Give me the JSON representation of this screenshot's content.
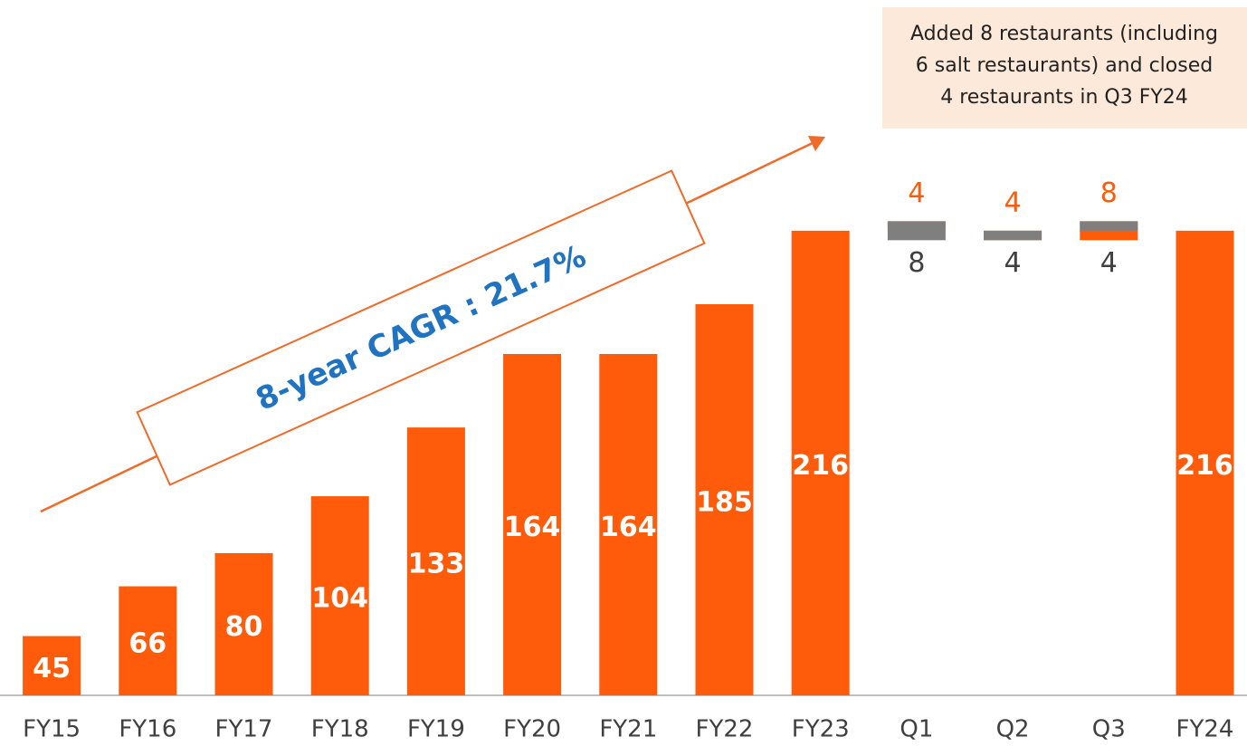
{
  "chart_data": {
    "type": "waterfall",
    "categories": [
      "FY15",
      "FY16",
      "FY17",
      "FY18",
      "FY19",
      "FY20",
      "FY21",
      "FY22",
      "FY23",
      "Q1",
      "Q2",
      "Q3",
      "FY24"
    ],
    "series": [
      {
        "color": "#fe5c0a",
        "values": [
          45,
          66,
          80,
          104,
          133,
          164,
          164,
          185,
          216,
          null,
          null,
          null,
          216
        ]
      },
      {
        "color": "#fe5c0a",
        "values": [
          null,
          null,
          null,
          null,
          null,
          null,
          null,
          null,
          null,
          4,
          4,
          8,
          null
        ]
      },
      {
        "color": "#7f7f7f",
        "values": [
          null,
          null,
          null,
          null,
          null,
          null,
          null,
          null,
          null,
          8,
          4,
          4,
          null
        ]
      }
    ],
    "ylim": [
      20,
      240
    ],
    "annotations": [
      "8-year CAGR : 21.7%",
      "Added 8 restaurants (including",
      "6 salt restaurants) and closed",
      "4 restaurants  in Q3 FY24"
    ]
  }
}
